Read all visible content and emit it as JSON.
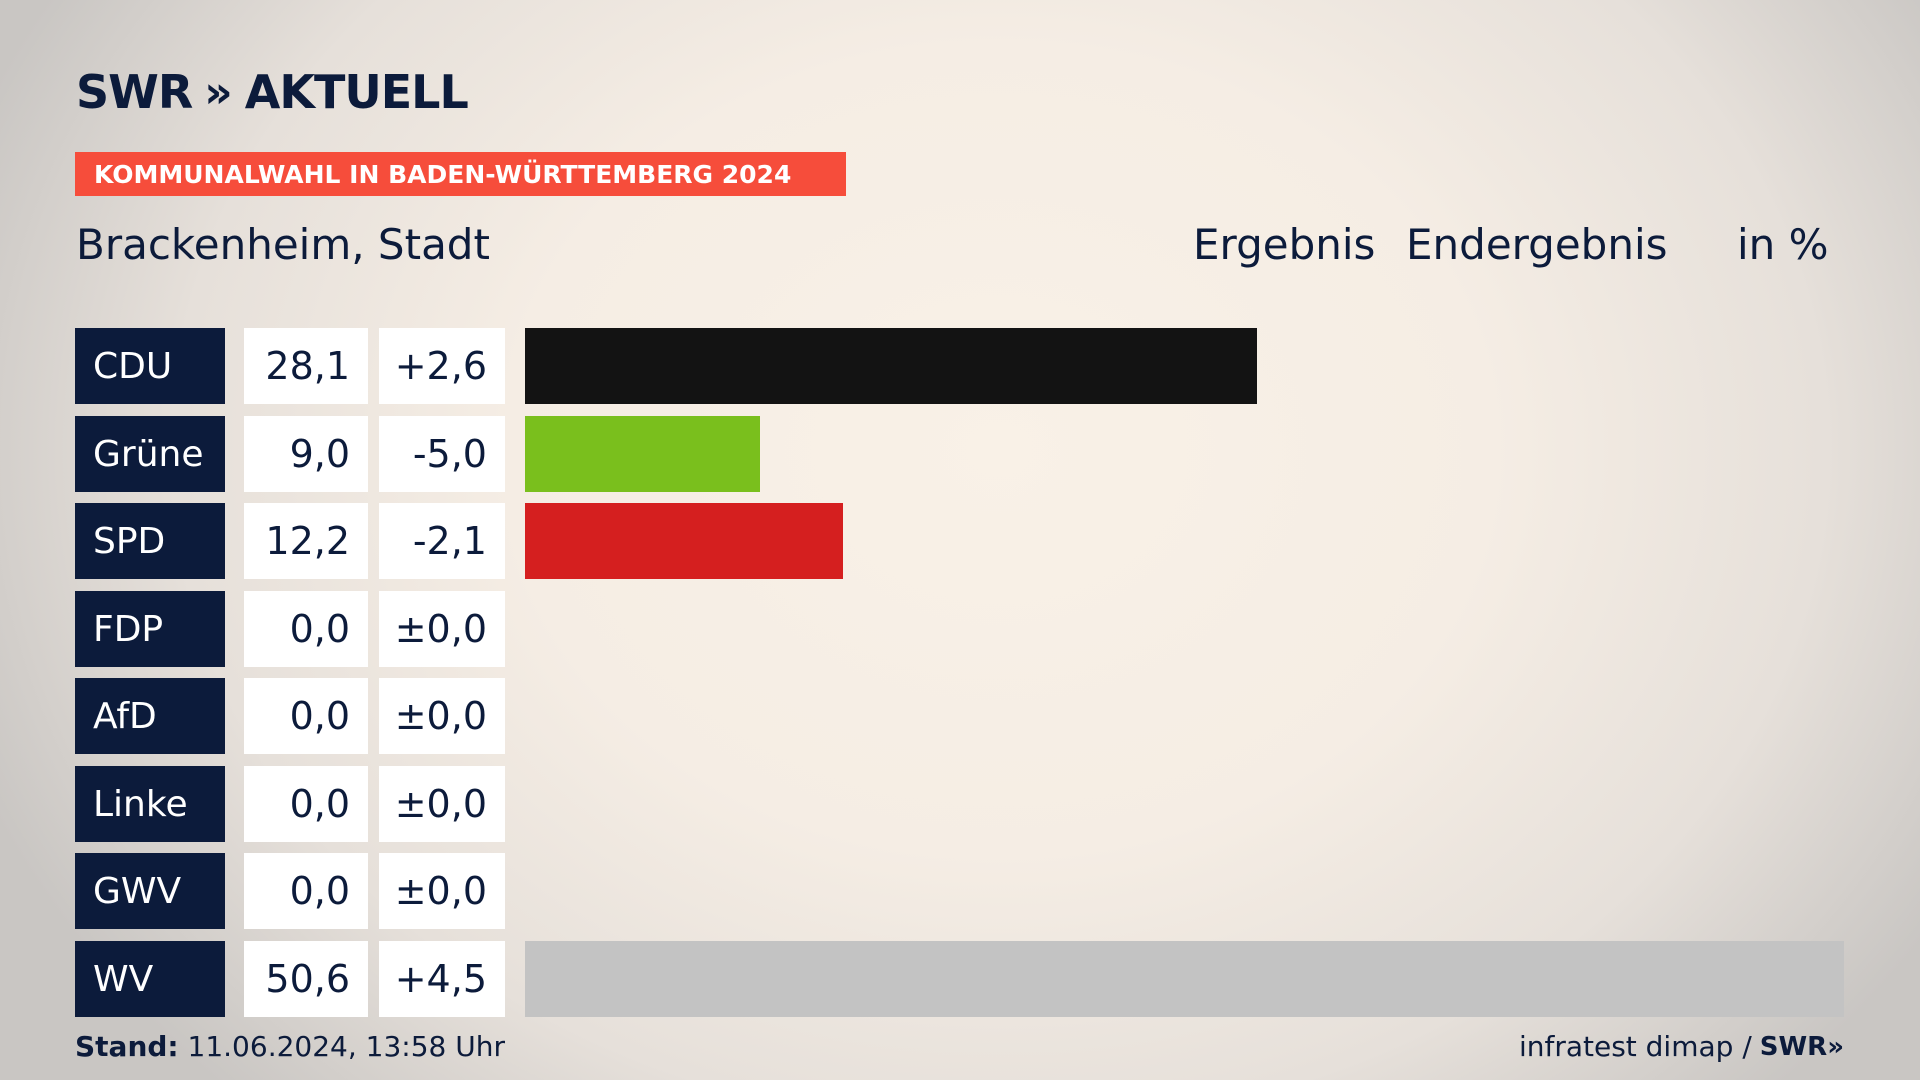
{
  "brand": {
    "name": "SWR",
    "chevrons": "»",
    "product": "AKTUELL"
  },
  "banner": "KOMMUNALWAHL IN BADEN-WÜRTTEMBERG 2024",
  "place": "Brackenheim, Stadt",
  "header": {
    "col1": "Ergebnis",
    "col2": "Endergebnis",
    "unit": "in %"
  },
  "colors": {
    "CDU": "#131313",
    "Grüne": "#7abf1d",
    "SPD": "#d51f1f",
    "FDP": "#f7d100",
    "AfD": "#1a9fd9",
    "Linke": "#b01c5a",
    "GWV": "#9a9a9a",
    "WV": "#c3c3c3"
  },
  "chart_data": {
    "type": "bar",
    "orientation": "horizontal",
    "categories": [
      "CDU",
      "Grüne",
      "SPD",
      "FDP",
      "AfD",
      "Linke",
      "GWV",
      "WV"
    ],
    "values": [
      28.1,
      9.0,
      12.2,
      0.0,
      0.0,
      0.0,
      0.0,
      50.6
    ],
    "value_labels": [
      "28,1",
      "9,0",
      "12,2",
      "0,0",
      "0,0",
      "0,0",
      "0,0",
      "50,6"
    ],
    "diff_labels": [
      "+2,6",
      "-5,0",
      "-2,1",
      "±0,0",
      "±0,0",
      "±0,0",
      "±0,0",
      "+4,5"
    ],
    "xlim": [
      0,
      50.6
    ],
    "ylabel": "in %"
  },
  "footer": {
    "stand_label": "Stand:",
    "stand_value": "11.06.2024, 13:58 Uhr",
    "source": "infratest dimap /",
    "source_brand": "SWR",
    "source_chev": "»"
  }
}
